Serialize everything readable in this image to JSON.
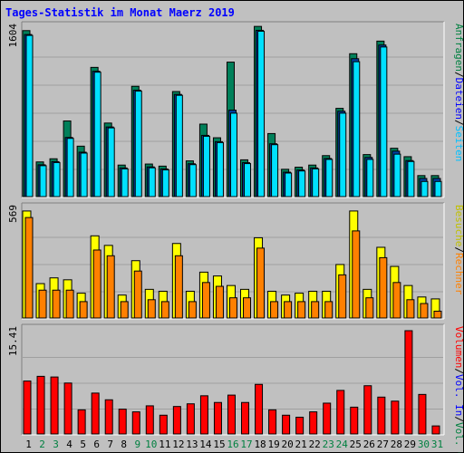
{
  "title": "Tages-Statistik im Monat Maerz 2019",
  "colors": {
    "title": "#0000ff",
    "frame_bg": "#c0c0c0",
    "plot_bg": "#c0c0c0",
    "grid": "#a0a0a0",
    "hits_front": "#00e0ff",
    "hits_back": "#00805a",
    "files_back": "#0040a0",
    "visits_front": "#ffff00",
    "visits_back": "#c0a000",
    "hosts_front": "#ff8000",
    "hosts_back": "#c05000",
    "kbytes_front": "#ff0000",
    "kbytes_back": "#b00000",
    "weekday_label": "#000000",
    "weekend_label": "#008040"
  },
  "legend_top": {
    "items": [
      {
        "text": "Anfragen",
        "color": "#008040"
      },
      {
        "text": "/",
        "color": "#000000"
      },
      {
        "text": "Dateien",
        "color": "#0000ff"
      },
      {
        "text": "/",
        "color": "#000000"
      },
      {
        "text": "Seiten",
        "color": "#00c0ff"
      }
    ]
  },
  "legend_mid": {
    "items": [
      {
        "text": "Besuche",
        "color": "#c0c000"
      },
      {
        "text": "/",
        "color": "#000000"
      },
      {
        "text": "Rechner",
        "color": "#ff8000"
      }
    ]
  },
  "legend_bot": {
    "items": [
      {
        "text": "Volumen",
        "color": "#ff0000"
      },
      {
        "text": "/",
        "color": "#000000"
      },
      {
        "text": "Vol. In",
        "color": "#0000ff"
      },
      {
        "text": "/",
        "color": "#000000"
      },
      {
        "text": "Vol. Out",
        "color": "#008040"
      }
    ]
  },
  "chart_data": [
    {
      "type": "bar",
      "panel": "top",
      "ylabel_max": "1604",
      "ylim": [
        0,
        1604
      ],
      "series": [
        {
          "name": "Anfragen",
          "values": [
            1580,
            330,
            360,
            720,
            480,
            1230,
            700,
            300,
            1050,
            310,
            290,
            1000,
            340,
            690,
            560,
            1280,
            350,
            1620,
            600,
            260,
            280,
            300,
            390,
            840,
            1360,
            400,
            1480,
            460,
            380,
            200,
            200
          ]
        },
        {
          "name": "Dateien",
          "values": [
            1560,
            320,
            350,
            580,
            440,
            1210,
            680,
            290,
            1030,
            300,
            280,
            990,
            330,
            600,
            540,
            840,
            340,
            1600,
            520,
            250,
            270,
            290,
            380,
            830,
            1330,
            390,
            1460,
            450,
            360,
            190,
            190
          ]
        },
        {
          "name": "Seiten",
          "values": [
            1560,
            320,
            350,
            580,
            440,
            1210,
            680,
            290,
            1030,
            300,
            280,
            990,
            330,
            600,
            540,
            820,
            340,
            1600,
            520,
            250,
            270,
            290,
            380,
            820,
            1310,
            380,
            1450,
            430,
            360,
            170,
            170
          ]
        }
      ],
      "categories": [
        "1",
        "2",
        "3",
        "4",
        "5",
        "6",
        "7",
        "8",
        "9",
        "10",
        "11",
        "12",
        "13",
        "14",
        "15",
        "16",
        "17",
        "18",
        "19",
        "20",
        "21",
        "22",
        "23",
        "24",
        "25",
        "26",
        "27",
        "28",
        "29",
        "30",
        "31"
      ]
    },
    {
      "type": "bar",
      "panel": "middle",
      "ylabel_max": "569",
      "ylim": [
        0,
        569
      ],
      "series": [
        {
          "name": "Besuche",
          "values": [
            560,
            180,
            210,
            200,
            130,
            430,
            380,
            120,
            300,
            150,
            140,
            390,
            140,
            240,
            220,
            170,
            150,
            420,
            140,
            120,
            130,
            140,
            140,
            280,
            560,
            150,
            370,
            270,
            170,
            110,
            100
          ]
        },
        {
          "name": "Rechner",
          "values": [
            540,
            160,
            160,
            160,
            100,
            370,
            340,
            100,
            260,
            110,
            100,
            340,
            100,
            200,
            180,
            120,
            120,
            380,
            100,
            100,
            100,
            100,
            100,
            240,
            470,
            120,
            330,
            200,
            110,
            90,
            50
          ]
        }
      ],
      "categories": [
        "1",
        "2",
        "3",
        "4",
        "5",
        "6",
        "7",
        "8",
        "9",
        "10",
        "11",
        "12",
        "13",
        "14",
        "15",
        "16",
        "17",
        "18",
        "19",
        "20",
        "21",
        "22",
        "23",
        "24",
        "25",
        "26",
        "27",
        "28",
        "29",
        "30",
        "31"
      ]
    },
    {
      "type": "bar",
      "panel": "bottom",
      "ylabel_max": "15.41",
      "ylim": [
        0,
        15.41
      ],
      "series": [
        {
          "name": "Volumen",
          "values": [
            7.9,
            8.6,
            8.5,
            7.6,
            3.6,
            6.1,
            5.1,
            3.7,
            3.3,
            4.2,
            2.8,
            4.1,
            4.5,
            5.7,
            4.7,
            5.8,
            4.7,
            7.4,
            3.6,
            2.8,
            2.5,
            3.3,
            4.6,
            6.5,
            4.0,
            7.2,
            5.5,
            4.9,
            15.41,
            5.9,
            1.2
          ]
        }
      ],
      "categories": [
        "1",
        "2",
        "3",
        "4",
        "5",
        "6",
        "7",
        "8",
        "9",
        "10",
        "11",
        "12",
        "13",
        "14",
        "15",
        "16",
        "17",
        "18",
        "19",
        "20",
        "21",
        "22",
        "23",
        "24",
        "25",
        "26",
        "27",
        "28",
        "29",
        "30",
        "31"
      ]
    }
  ],
  "x_labels": [
    {
      "text": "1",
      "weekend": false
    },
    {
      "text": "2",
      "weekend": true
    },
    {
      "text": "3",
      "weekend": true
    },
    {
      "text": "4",
      "weekend": false
    },
    {
      "text": "5",
      "weekend": false
    },
    {
      "text": "6",
      "weekend": false
    },
    {
      "text": "7",
      "weekend": false
    },
    {
      "text": "8",
      "weekend": false
    },
    {
      "text": "9",
      "weekend": true
    },
    {
      "text": "10",
      "weekend": true
    },
    {
      "text": "11",
      "weekend": false
    },
    {
      "text": "12",
      "weekend": false
    },
    {
      "text": "13",
      "weekend": false
    },
    {
      "text": "14",
      "weekend": false
    },
    {
      "text": "15",
      "weekend": false
    },
    {
      "text": "16",
      "weekend": true
    },
    {
      "text": "17",
      "weekend": true
    },
    {
      "text": "18",
      "weekend": false
    },
    {
      "text": "19",
      "weekend": false
    },
    {
      "text": "20",
      "weekend": false
    },
    {
      "text": "21",
      "weekend": false
    },
    {
      "text": "22",
      "weekend": false
    },
    {
      "text": "23",
      "weekend": true
    },
    {
      "text": "24",
      "weekend": true
    },
    {
      "text": "25",
      "weekend": false
    },
    {
      "text": "26",
      "weekend": false
    },
    {
      "text": "27",
      "weekend": false
    },
    {
      "text": "28",
      "weekend": false
    },
    {
      "text": "29",
      "weekend": false
    },
    {
      "text": "30",
      "weekend": true
    },
    {
      "text": "31",
      "weekend": true
    }
  ]
}
